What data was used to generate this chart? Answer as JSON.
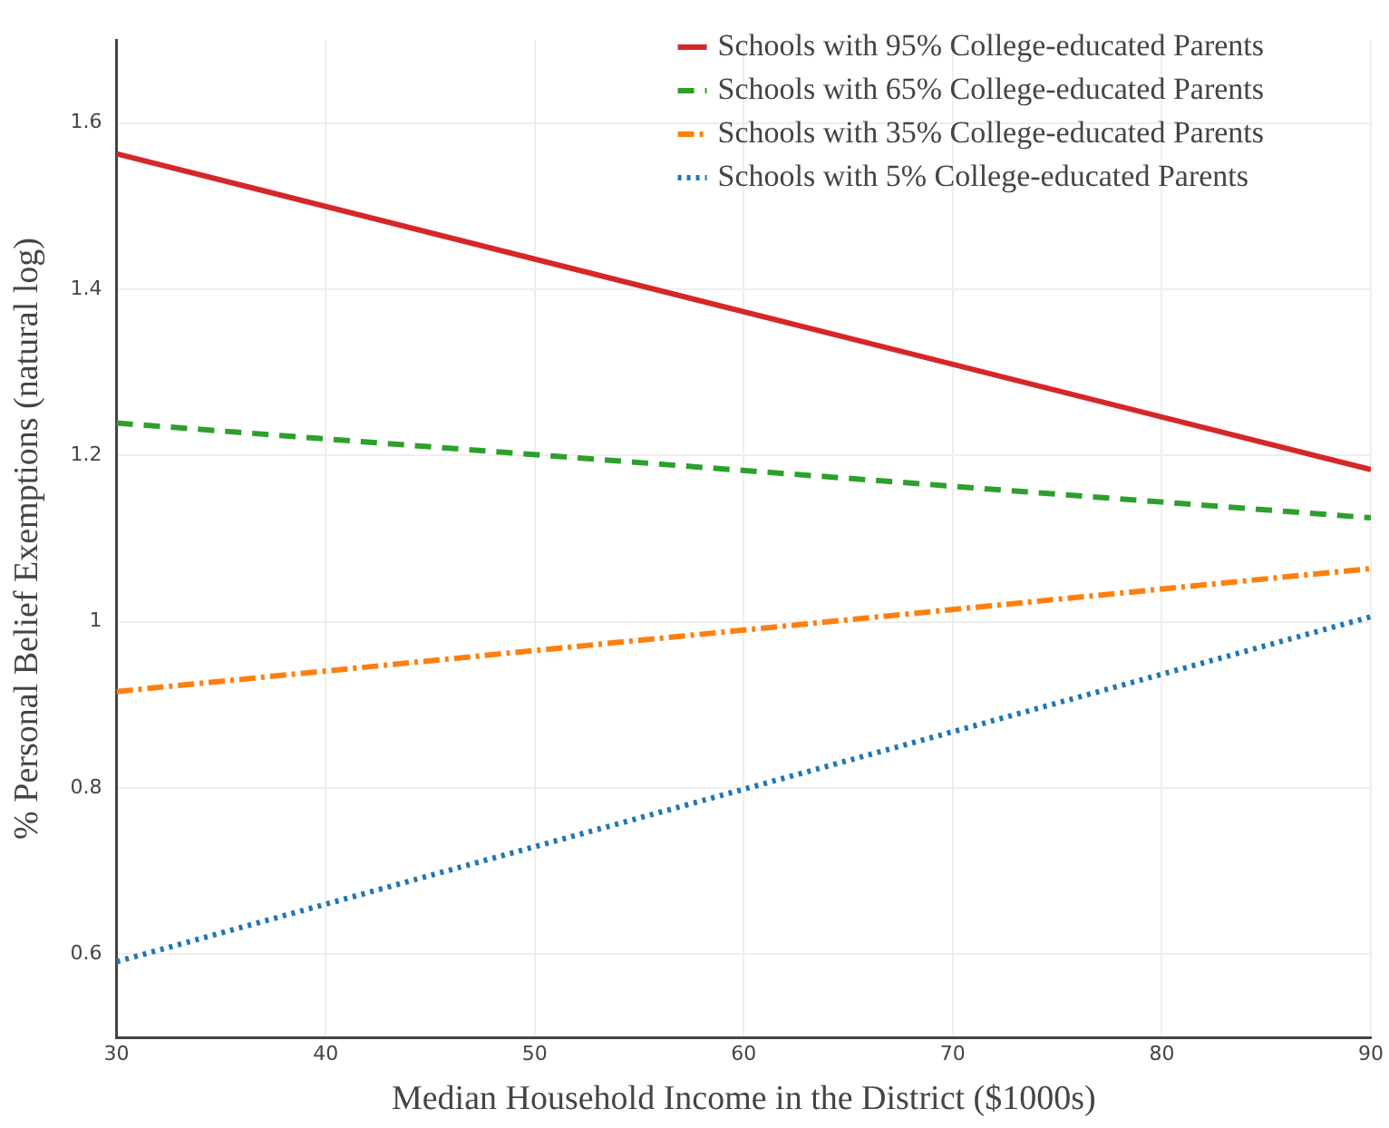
{
  "chart_data": {
    "type": "line",
    "xlabel": "Median Household Income in the District ($1000s)",
    "ylabel": "% Personal Belief Exemptions (natural log)",
    "x": [
      30,
      90
    ],
    "xlim": [
      30,
      90
    ],
    "xticks": [
      30,
      40,
      50,
      60,
      70,
      80,
      90
    ],
    "ylim": [
      0.5,
      1.7
    ],
    "yticks": [
      0.6,
      0.8,
      1,
      1.2,
      1.4,
      1.6
    ],
    "grid": true,
    "legend": "top right",
    "marker": "none",
    "series": [
      {
        "name": "Schools with 95% College-educated Parents",
        "color": "#d62728",
        "values": [
          1.563,
          1.183
        ],
        "line_style": "solid"
      },
      {
        "name": "Schools with 65% College-educated Parents",
        "color": "#2ca02c",
        "values": [
          1.239,
          1.125
        ],
        "line_style": "dashed"
      },
      {
        "name": "Schools with 35% College-educated Parents",
        "color": "#ff7f0e",
        "values": [
          0.916,
          1.064
        ],
        "line_style": "dashdot"
      },
      {
        "name": "Schools with 5% College-educated Parents",
        "color": "#1f77b4",
        "values": [
          0.591,
          1.006
        ],
        "line_style": "dotted"
      }
    ]
  }
}
